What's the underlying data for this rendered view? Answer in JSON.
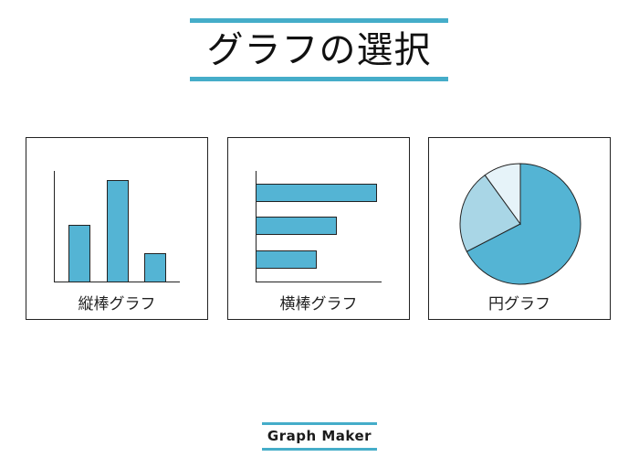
{
  "page": {
    "title": "グラフの選択"
  },
  "options": [
    {
      "label": "縦棒グラフ",
      "icon": "column-chart-icon"
    },
    {
      "label": "横棒グラフ",
      "icon": "bar-chart-icon"
    },
    {
      "label": "円グラフ",
      "icon": "pie-chart-icon"
    }
  ],
  "footer": {
    "brand": "Graph Maker"
  },
  "colors": {
    "accent": "#45adc9",
    "chart_fill": "#54b4d4",
    "chart_light": "#a9d6e6",
    "chart_lighter": "#e6f3f9",
    "border": "#222222"
  }
}
